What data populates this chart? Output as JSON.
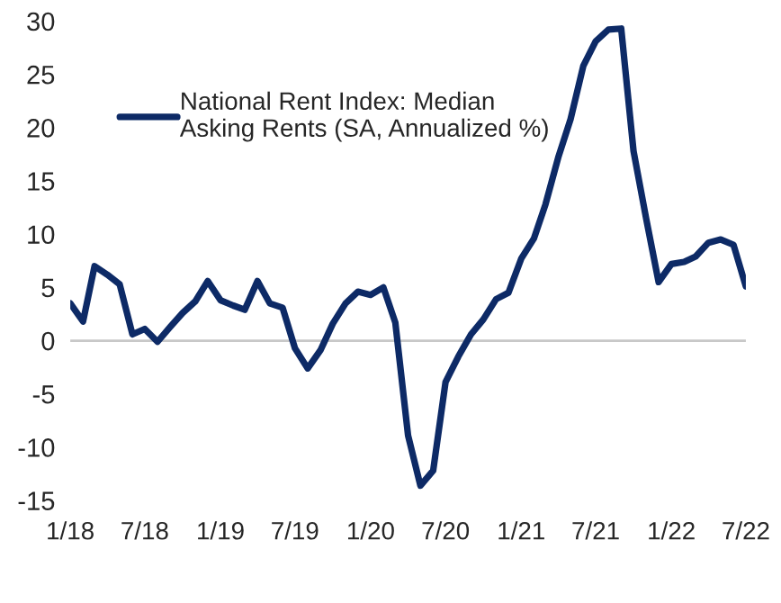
{
  "chart_data": {
    "type": "line",
    "x": [
      "2018-01",
      "2018-02",
      "2018-03",
      "2018-04",
      "2018-05",
      "2018-06",
      "2018-07",
      "2018-08",
      "2018-09",
      "2018-10",
      "2018-11",
      "2018-12",
      "2019-01",
      "2019-02",
      "2019-03",
      "2019-04",
      "2019-05",
      "2019-06",
      "2019-07",
      "2019-08",
      "2019-09",
      "2019-10",
      "2019-11",
      "2019-12",
      "2020-01",
      "2020-02",
      "2020-03",
      "2020-04",
      "2020-05",
      "2020-06",
      "2020-07",
      "2020-08",
      "2020-09",
      "2020-10",
      "2020-11",
      "2020-12",
      "2021-01",
      "2021-02",
      "2021-03",
      "2021-04",
      "2021-05",
      "2021-06",
      "2021-07",
      "2021-08",
      "2021-09",
      "2021-10",
      "2021-11",
      "2021-12",
      "2022-01",
      "2022-02",
      "2022-03",
      "2022-04",
      "2022-05",
      "2022-06",
      "2022-07"
    ],
    "series": [
      {
        "name": "National Rent Index: Median\nAsking Rents (SA, Annualized %)",
        "color": "#0d2a66",
        "values": [
          3.5,
          1.8,
          7.0,
          6.2,
          5.3,
          0.6,
          1.1,
          -0.1,
          1.3,
          2.6,
          3.7,
          5.6,
          3.8,
          3.3,
          2.9,
          5.6,
          3.5,
          3.1,
          -0.7,
          -2.6,
          -0.9,
          1.6,
          3.5,
          4.6,
          4.3,
          5.0,
          1.7,
          -8.9,
          -13.6,
          -12.2,
          -3.9,
          -1.5,
          0.6,
          2.0,
          3.9,
          4.5,
          7.7,
          9.6,
          12.8,
          17.2,
          20.8,
          25.8,
          28.1,
          29.2,
          29.3,
          17.8,
          11.4,
          5.5,
          7.2,
          7.4,
          7.9,
          9.2,
          9.5,
          9.0,
          5.1
        ]
      }
    ],
    "xlim": [
      "2018-01",
      "2022-07"
    ],
    "xticks": [
      {
        "value": "2018-01",
        "label": "1/18"
      },
      {
        "value": "2018-07",
        "label": "7/18"
      },
      {
        "value": "2019-01",
        "label": "1/19"
      },
      {
        "value": "2019-07",
        "label": "7/19"
      },
      {
        "value": "2020-01",
        "label": "1/20"
      },
      {
        "value": "2020-07",
        "label": "7/20"
      },
      {
        "value": "2021-01",
        "label": "1/21"
      },
      {
        "value": "2021-07",
        "label": "7/21"
      },
      {
        "value": "2022-01",
        "label": "1/22"
      },
      {
        "value": "2022-07",
        "label": "7/22"
      }
    ],
    "ylim": [
      -15,
      30
    ],
    "yticks": [
      -15,
      -10,
      -5,
      0,
      5,
      10,
      15,
      20,
      25,
      30
    ],
    "grid": false,
    "ref_lines": [
      {
        "axis": "y",
        "value": 0,
        "color": "#c8c8c8"
      }
    ],
    "legend": "top left",
    "line_style": "solid",
    "marker": "none"
  }
}
